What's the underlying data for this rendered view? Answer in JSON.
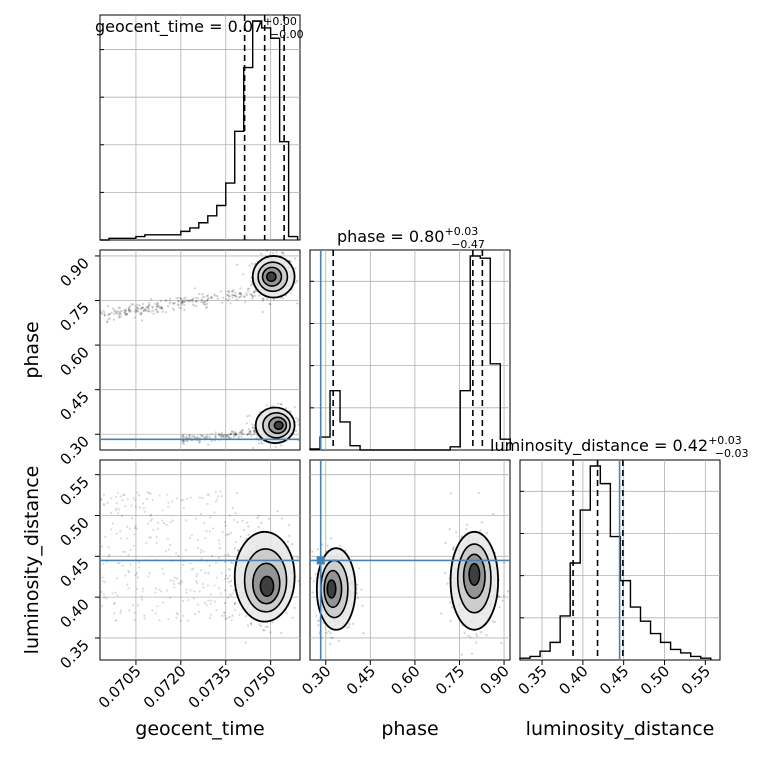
{
  "chart_data": {
    "type": "corner",
    "parameters": [
      "geocent_time",
      "phase",
      "luminosity_distance"
    ],
    "titles": [
      {
        "text": "geocent_time = 0.07",
        "plus": "+0.00",
        "minus": "−0.00"
      },
      {
        "text": "phase = 0.80",
        "plus": "+0.03",
        "minus": "−0.47"
      },
      {
        "text": "luminosity_distance = 0.42",
        "plus": "+0.03",
        "minus": "−0.03"
      }
    ],
    "ranges": {
      "geocent_time": [
        0.0693,
        0.07598
      ],
      "phase": [
        0.247,
        0.92
      ],
      "luminosity_distance": [
        0.323,
        0.568
      ]
    },
    "ticks": {
      "geocent_time": {
        "values": [
          0.0705,
          0.072,
          0.0735,
          0.075
        ],
        "labels": [
          "0.0705",
          "0.0720",
          "0.0735",
          "0.0750"
        ]
      },
      "phase": {
        "values": [
          0.3,
          0.45,
          0.6,
          0.75,
          0.9
        ],
        "labels": [
          "0.30",
          "0.45",
          "0.60",
          "0.75",
          "0.90"
        ]
      },
      "luminosity_distance": {
        "values": [
          0.35,
          0.4,
          0.45,
          0.5,
          0.55
        ],
        "labels": [
          "0.35",
          "0.40",
          "0.45",
          "0.50",
          "0.55"
        ]
      }
    },
    "truths": {
      "geocent_time": null,
      "phase": 0.283,
      "luminosity_distance": 0.445
    },
    "quantiles": {
      "geocent_time": [
        0.07413,
        0.0748,
        0.07545
      ],
      "phase": [
        0.325,
        0.795,
        0.827
      ],
      "luminosity_distance": [
        0.388,
        0.418,
        0.449
      ]
    },
    "histograms": {
      "geocent_time": {
        "bin_edges": [
          0.0693,
          0.0696,
          0.0699,
          0.0702,
          0.0705,
          0.0708,
          0.0711,
          0.0714,
          0.0717,
          0.072,
          0.0723,
          0.0726,
          0.0729,
          0.0732,
          0.0735,
          0.0738,
          0.0741,
          0.0744,
          0.0747,
          0.075,
          0.0753,
          0.0756,
          0.0759
        ],
        "counts": [
          0,
          1,
          1,
          1,
          2,
          3,
          3,
          3,
          3,
          5,
          7,
          10,
          14,
          20,
          33,
          63,
          100,
          127,
          123,
          117,
          57,
          2
        ]
      },
      "phase": {
        "bin_edges": [
          0.247,
          0.2807,
          0.3144,
          0.3481,
          0.3818,
          0.4155,
          0.4492,
          0.4829,
          0.5166,
          0.5503,
          0.584,
          0.6177,
          0.6514,
          0.6851,
          0.7188,
          0.7525,
          0.7862,
          0.8199,
          0.8536,
          0.8873,
          0.921
        ],
        "counts": [
          1,
          12,
          55,
          26,
          4,
          0,
          0,
          0,
          0,
          0,
          0,
          0,
          0,
          0,
          3,
          55,
          180,
          178,
          80,
          10
        ]
      },
      "luminosity_distance": {
        "bin_edges": [
          0.323,
          0.3353,
          0.3476,
          0.3599,
          0.3722,
          0.3845,
          0.3968,
          0.4091,
          0.4214,
          0.4337,
          0.446,
          0.4583,
          0.4706,
          0.4829,
          0.4952,
          0.5075,
          0.5198,
          0.5321,
          0.5444,
          0.5567
        ],
        "counts": [
          1,
          2,
          5,
          10,
          25,
          55,
          85,
          110,
          100,
          70,
          45,
          30,
          22,
          15,
          10,
          6,
          4,
          2,
          1
        ]
      }
    },
    "joint_clusters": {
      "geocent_time_vs_phase": [
        {
          "x": [
            0.0744,
            0.0758
          ],
          "y": [
            0.76,
            0.9
          ],
          "peak": [
            0.075,
            0.83
          ]
        },
        {
          "x": [
            0.0745,
            0.0758
          ],
          "y": [
            0.27,
            0.39
          ],
          "peak": [
            0.0753,
            0.33
          ]
        }
      ],
      "geocent_time_vs_luminosity_distance": [
        {
          "x": [
            0.0738,
            0.0758
          ],
          "y": [
            0.37,
            0.48
          ],
          "peak": [
            0.0749,
            0.41
          ]
        }
      ],
      "phase_vs_luminosity_distance": [
        {
          "x": [
            0.27,
            0.4
          ],
          "y": [
            0.36,
            0.46
          ],
          "peak": [
            0.315,
            0.41
          ]
        },
        {
          "x": [
            0.72,
            0.88
          ],
          "y": [
            0.36,
            0.48
          ],
          "peak": [
            0.8,
            0.43
          ]
        }
      ]
    },
    "grid": true,
    "truth_color": "#4682b4",
    "contour_color": "#000000"
  }
}
